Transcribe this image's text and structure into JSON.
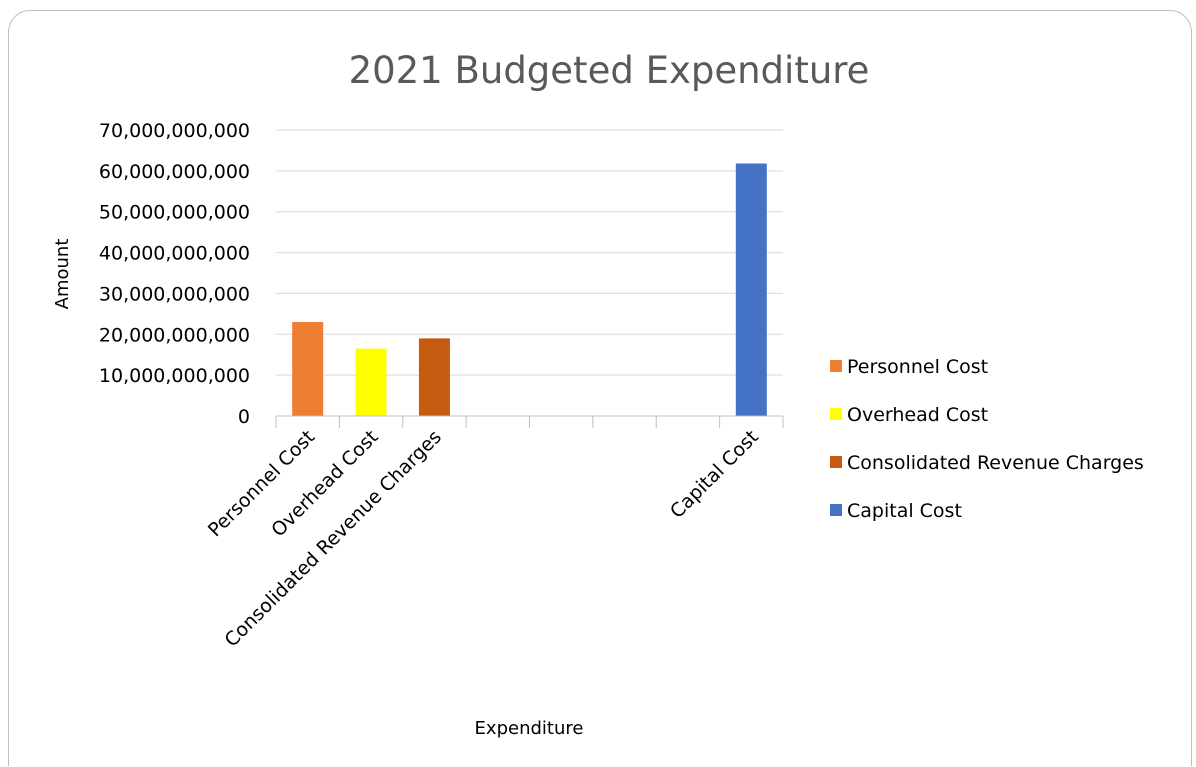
{
  "chart_data": {
    "type": "bar",
    "title": "2021 Budgeted Expenditure",
    "xlabel": "Expenditure",
    "ylabel": "Amount",
    "ylim": [
      0,
      70000000000
    ],
    "yticks": [
      0,
      10000000000,
      20000000000,
      30000000000,
      40000000000,
      50000000000,
      60000000000,
      70000000000
    ],
    "ytick_labels": [
      "0",
      "10,000,000,000",
      "20,000,000,000",
      "30,000,000,000",
      "40,000,000,000",
      "50,000,000,000",
      "60,000,000,000",
      "70,000,000,000"
    ],
    "grid": true,
    "legend_position": "right",
    "categories": [
      "Personnel Cost",
      "Overhead Cost",
      "Consolidated Revenue Charges",
      "",
      "",
      "",
      "",
      "Capital Cost"
    ],
    "series": [
      {
        "name": "Personnel Cost",
        "color": "#ED7D31",
        "values": [
          23000000000,
          null,
          null,
          null,
          null,
          null,
          null,
          null
        ]
      },
      {
        "name": "Overhead Cost",
        "color": "#FFFF00",
        "values": [
          null,
          16500000000,
          null,
          null,
          null,
          null,
          null,
          null
        ]
      },
      {
        "name": "Consolidated Revenue Charges",
        "color": "#C55A11",
        "values": [
          null,
          null,
          19000000000,
          null,
          null,
          null,
          null,
          null
        ]
      },
      {
        "name": "Capital Cost",
        "color": "#4472C4",
        "values": [
          null,
          null,
          null,
          null,
          null,
          null,
          null,
          61800000000
        ]
      }
    ]
  }
}
